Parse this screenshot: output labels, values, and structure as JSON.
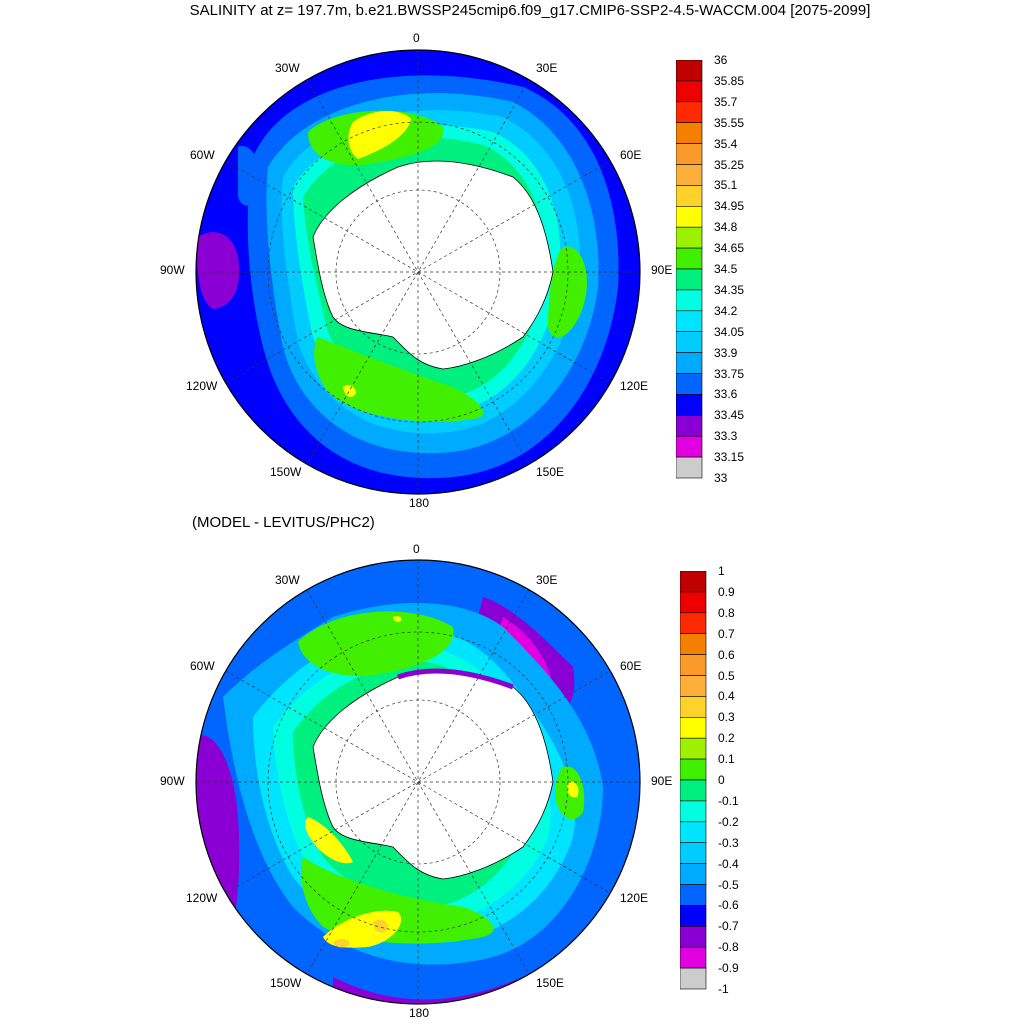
{
  "title": "SALINITY at z= 197.7m, b.e21.BWSSP245cmip6.f09_g17.CMIP6-SSP2-4.5-WACCM.004 [2075-2099]",
  "subtitle": "(MODEL - LEVITUS/PHC2)",
  "lon_labels": {
    "top": [
      "0",
      "30E",
      "60E",
      "90E",
      "120E",
      "150E",
      "180",
      "150W",
      "120W",
      "90W",
      "60W",
      "30W"
    ]
  },
  "colorbar_top": {
    "labels": [
      "36",
      "35.85",
      "35.7",
      "35.55",
      "35.4",
      "35.25",
      "35.1",
      "34.95",
      "34.8",
      "34.65",
      "34.5",
      "34.35",
      "34.2",
      "34.05",
      "33.9",
      "33.75",
      "33.6",
      "33.45",
      "33.3",
      "33.15",
      "33"
    ],
    "colors": [
      "#c00000",
      "#ee0000",
      "#ff2a00",
      "#f57f00",
      "#fb9a29",
      "#fcb03b",
      "#fdd22a",
      "#ffff00",
      "#9cf000",
      "#40f000",
      "#00f07f",
      "#00ffe0",
      "#00e5ff",
      "#00ccff",
      "#00aaff",
      "#0066ff",
      "#0000ff",
      "#8a00d4",
      "#e000e0",
      "#cccccc",
      "#707070"
    ]
  },
  "colorbar_bottom": {
    "labels": [
      "1",
      "0.9",
      "0.8",
      "0.7",
      "0.6",
      "0.5",
      "0.4",
      "0.3",
      "0.2",
      "0.1",
      "0",
      "-0.1",
      "-0.2",
      "-0.3",
      "-0.4",
      "-0.5",
      "-0.6",
      "-0.7",
      "-0.8",
      "-0.9",
      "-1"
    ],
    "colors": [
      "#c00000",
      "#ee0000",
      "#ff2a00",
      "#f57f00",
      "#fb9a29",
      "#fcb03b",
      "#fdd22a",
      "#ffff00",
      "#9cf000",
      "#40f000",
      "#00f07f",
      "#00ffe0",
      "#00e5ff",
      "#00ccff",
      "#00aaff",
      "#0066ff",
      "#0000ff",
      "#8a00d4",
      "#e000e0",
      "#cccccc",
      "#707070"
    ]
  }
}
